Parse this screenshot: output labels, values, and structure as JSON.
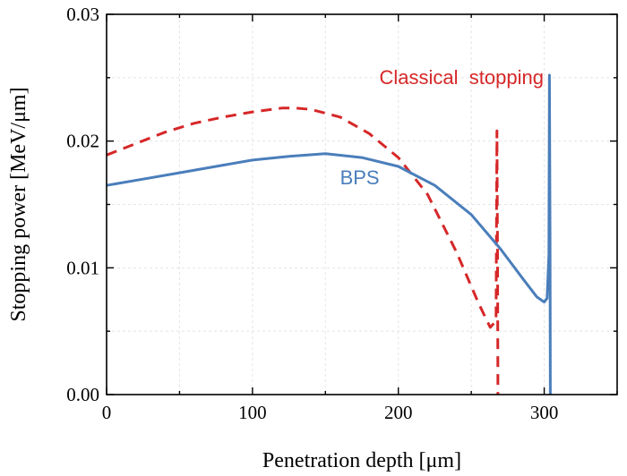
{
  "chart_data": {
    "type": "line",
    "xlabel": "Penetration depth [μm]",
    "ylabel": "Stopping power [MeV/μm]",
    "xlim": [
      0,
      350
    ],
    "ylim": [
      0,
      0.03
    ],
    "xticks": [
      0,
      100,
      200,
      300
    ],
    "xtick_labels": [
      "0",
      "100",
      "200",
      "300"
    ],
    "yticks": [
      0,
      0.01,
      0.02,
      0.03
    ],
    "ytick_labels": [
      "0.00",
      "0.01",
      "0.02",
      "0.03"
    ],
    "grid": true,
    "series": [
      {
        "name": "Classical stopping",
        "color": "#d62728",
        "style": "dashed",
        "x": [
          0,
          20,
          40,
          60,
          80,
          100,
          120,
          130,
          140,
          160,
          180,
          200,
          220,
          240,
          255,
          263,
          267,
          267.6,
          268,
          268.3
        ],
        "y": [
          0.0189,
          0.0198,
          0.0207,
          0.0214,
          0.0219,
          0.0223,
          0.0226,
          0.0226,
          0.0225,
          0.0219,
          0.0206,
          0.0187,
          0.0158,
          0.0112,
          0.0072,
          0.0053,
          0.0058,
          0.0208,
          0.0105,
          0.0
        ]
      },
      {
        "name": "BPS",
        "color": "#4a7ebb",
        "style": "solid",
        "x": [
          0,
          25,
          50,
          75,
          100,
          125,
          150,
          175,
          200,
          225,
          250,
          270,
          285,
          295,
          300,
          302,
          303.2,
          303.6,
          304,
          304.2
        ],
        "y": [
          0.0165,
          0.017,
          0.0175,
          0.018,
          0.0185,
          0.0188,
          0.019,
          0.0187,
          0.018,
          0.0165,
          0.0142,
          0.0115,
          0.0092,
          0.0077,
          0.0073,
          0.0076,
          0.011,
          0.0252,
          0.012,
          0.0
        ]
      }
    ],
    "annotations": [
      {
        "text": "Classical  stopping",
        "series": 0,
        "x": 187,
        "y": 0.0245
      },
      {
        "text": "BPS",
        "series": 1,
        "x": 160,
        "y": 0.0166
      }
    ]
  }
}
